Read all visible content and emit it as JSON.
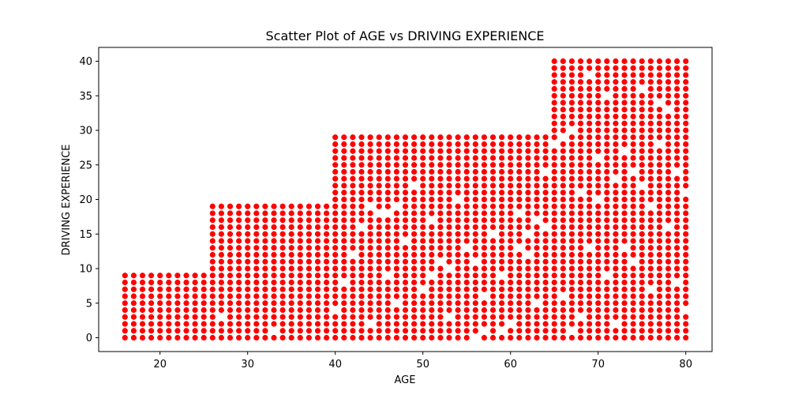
{
  "chart_data": {
    "type": "scatter",
    "title": "Scatter Plot of AGE vs DRIVING EXPERIENCE",
    "xlabel": "AGE",
    "ylabel": "DRIVING EXPERIENCE",
    "xlim": [
      13,
      83
    ],
    "ylim": [
      -2,
      42
    ],
    "xticks": [
      20,
      30,
      40,
      50,
      60,
      70,
      80
    ],
    "yticks": [
      0,
      5,
      10,
      15,
      20,
      25,
      30,
      35,
      40
    ],
    "grid": false,
    "marker_color": "#ff0000",
    "series": [
      {
        "groups": [
          {
            "age_range": [
              16,
              25
            ],
            "experience_range": [
              0,
              9
            ]
          },
          {
            "age_range": [
              26,
              39
            ],
            "experience_range": [
              0,
              19
            ]
          },
          {
            "age_range": [
              40,
              64
            ],
            "experience_range": [
              0,
              29
            ]
          },
          {
            "age_range": [
              65,
              80
            ],
            "experience_range": [
              0,
              40
            ]
          }
        ],
        "missing_points": [
          [
            27,
            3
          ],
          [
            33,
            1
          ],
          [
            40,
            4
          ],
          [
            41,
            8
          ],
          [
            42,
            12
          ],
          [
            43,
            16
          ],
          [
            44,
            2
          ],
          [
            45,
            18
          ],
          [
            46,
            9
          ],
          [
            47,
            5
          ],
          [
            48,
            14
          ],
          [
            49,
            22
          ],
          [
            50,
            7
          ],
          [
            51,
            17
          ],
          [
            52,
            11
          ],
          [
            53,
            3
          ],
          [
            54,
            20
          ],
          [
            55,
            13
          ],
          [
            56,
            0
          ],
          [
            57,
            6
          ],
          [
            58,
            15
          ],
          [
            59,
            9
          ],
          [
            60,
            2
          ],
          [
            61,
            18
          ],
          [
            62,
            12
          ],
          [
            63,
            5
          ],
          [
            64,
            24
          ],
          [
            44,
            19
          ],
          [
            46,
            18
          ],
          [
            47,
            19
          ],
          [
            51,
            9
          ],
          [
            53,
            10
          ],
          [
            56,
            11
          ],
          [
            57,
            1
          ],
          [
            59,
            1
          ],
          [
            61,
            13
          ],
          [
            62,
            15
          ],
          [
            63,
            17
          ],
          [
            64,
            16
          ],
          [
            66,
            6
          ],
          [
            67,
            1
          ],
          [
            67,
            30
          ],
          [
            68,
            21
          ],
          [
            68,
            3
          ],
          [
            69,
            13
          ],
          [
            69,
            38
          ],
          [
            70,
            26
          ],
          [
            70,
            20
          ],
          [
            71,
            35
          ],
          [
            71,
            9
          ],
          [
            72,
            23
          ],
          [
            72,
            2
          ],
          [
            73,
            27
          ],
          [
            73,
            13
          ],
          [
            74,
            24
          ],
          [
            74,
            11
          ],
          [
            75,
            36
          ],
          [
            75,
            22
          ],
          [
            76,
            19
          ],
          [
            76,
            7
          ],
          [
            77,
            34
          ],
          [
            77,
            28
          ],
          [
            78,
            33
          ],
          [
            78,
            16
          ],
          [
            79,
            8
          ],
          [
            79,
            24
          ],
          [
            80,
            21
          ],
          [
            80,
            4
          ],
          [
            65,
            28
          ],
          [
            66,
            29
          ]
        ]
      }
    ]
  }
}
